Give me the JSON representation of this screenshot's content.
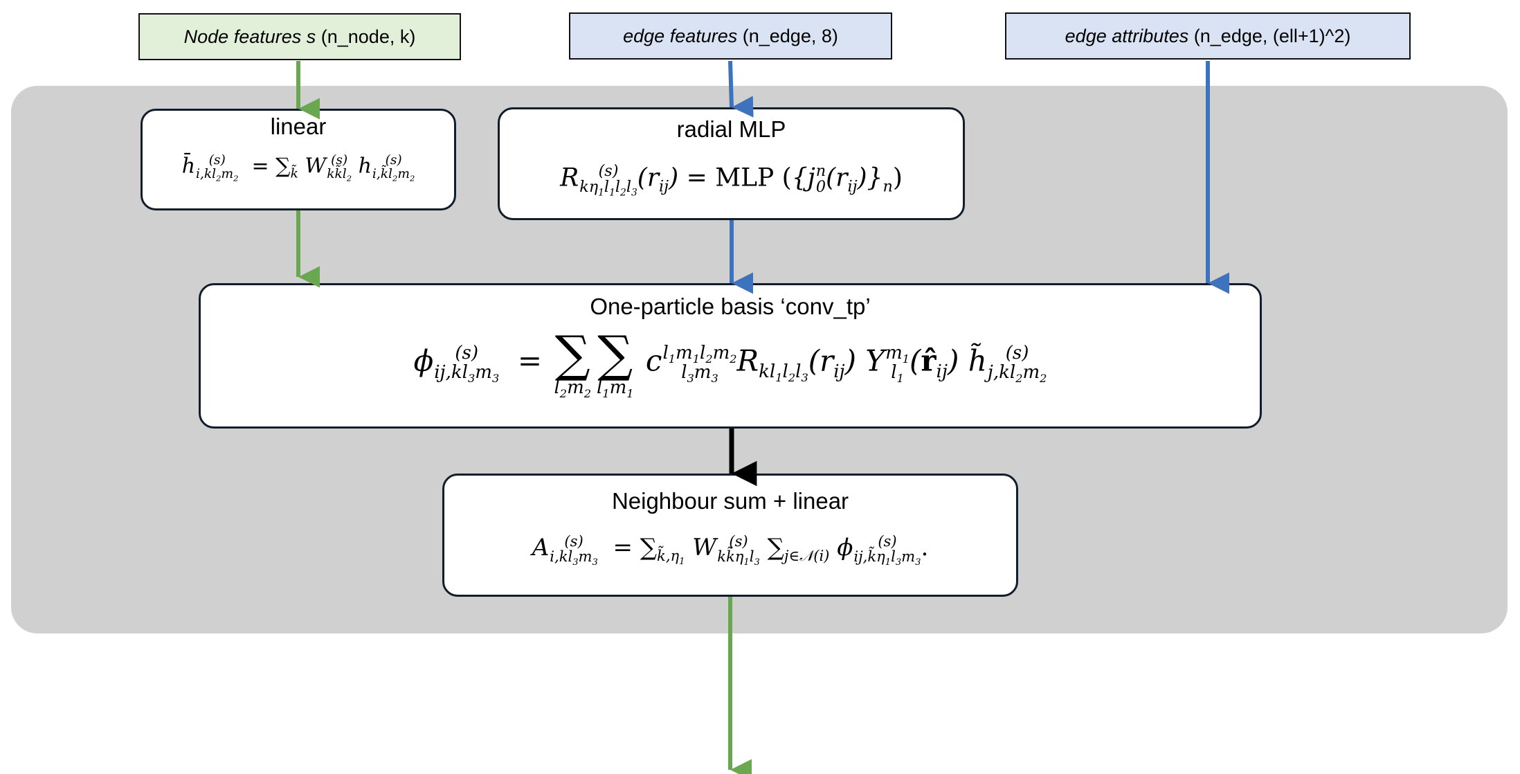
{
  "inputs": {
    "node": {
      "italic": "Node features s",
      "rest": " (n_node, k)",
      "fill": "#e2f0d9"
    },
    "edge_features": {
      "italic": "edge features",
      "rest": " (n_edge, 8)",
      "fill": "#dae3f3"
    },
    "edge_attributes": {
      "italic": "edge attributes",
      "rest": " (n_edge, (ell+1)^2)",
      "fill": "#dae3f3"
    }
  },
  "boxes": {
    "linear": {
      "title": "linear"
    },
    "radial": {
      "title": "radial MLP"
    },
    "onepart": {
      "title": "One-particle basis ‘conv_tp’"
    },
    "neigh": {
      "title": "Neighbour sum + linear"
    }
  },
  "colors": {
    "green": "#6aa84f",
    "blue": "#3d73bd",
    "black": "#000000",
    "panel": "#d0d0d0"
  }
}
